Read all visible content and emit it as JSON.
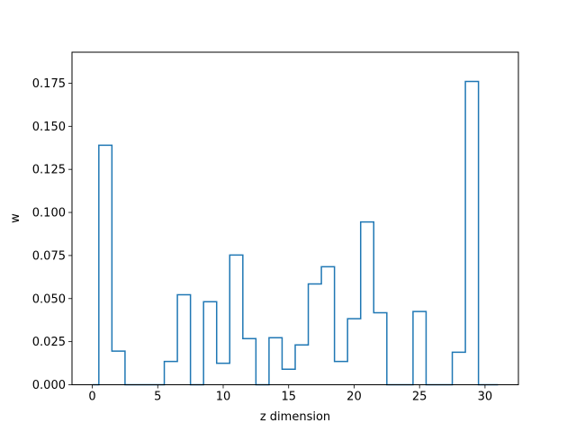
{
  "chart_data": {
    "type": "step",
    "title": "",
    "xlabel": "z dimension",
    "ylabel": "w",
    "xlim": [
      -1.55,
      32.55
    ],
    "ylim": [
      0,
      0.193
    ],
    "grid": false,
    "color": "#1f77b4",
    "x_ticks": [
      0,
      5,
      10,
      15,
      20,
      25,
      30
    ],
    "x_tick_labels": [
      "0",
      "5",
      "10",
      "15",
      "20",
      "25",
      "30"
    ],
    "y_ticks": [
      0.0,
      0.025,
      0.05,
      0.075,
      0.1,
      0.125,
      0.15,
      0.175
    ],
    "y_tick_labels": [
      "0.000",
      "0.025",
      "0.050",
      "0.075",
      "0.100",
      "0.125",
      "0.150",
      "0.175"
    ],
    "x": [
      0,
      1,
      2,
      3,
      4,
      5,
      6,
      7,
      8,
      9,
      10,
      11,
      12,
      13,
      14,
      15,
      16,
      17,
      18,
      19,
      20,
      21,
      22,
      23,
      24,
      25,
      26,
      27,
      28,
      29,
      30,
      31
    ],
    "values": [
      0.0,
      0.139,
      0.0195,
      0.0,
      0.0,
      0.0,
      0.0135,
      0.0522,
      0.0,
      0.0482,
      0.0125,
      0.0753,
      0.0268,
      0.0,
      0.0273,
      0.009,
      0.0231,
      0.0585,
      0.0685,
      0.0135,
      0.0383,
      0.0945,
      0.0418,
      0.0,
      0.0,
      0.0425,
      0.0,
      0.0,
      0.0189,
      0.176,
      0.0,
      0.0
    ]
  }
}
